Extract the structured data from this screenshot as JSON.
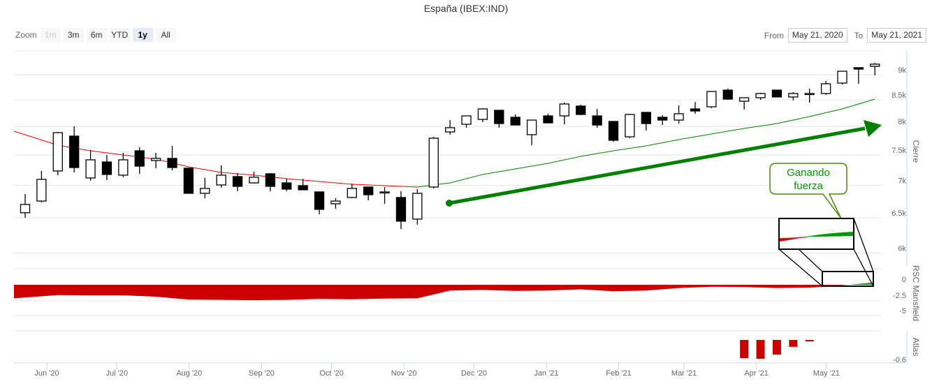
{
  "header": {
    "title": "España (IBEX:IND)",
    "zoom_label": "Zoom",
    "zoom_buttons": [
      {
        "label": "1m",
        "state": "disabled"
      },
      {
        "label": "3m",
        "state": "normal"
      },
      {
        "label": "6m",
        "state": "normal"
      },
      {
        "label": "YTD",
        "state": "normal"
      },
      {
        "label": "1y",
        "state": "selected"
      },
      {
        "label": "All",
        "state": "normal"
      }
    ],
    "from_label": "From",
    "from_value": "May 21, 2020",
    "to_label": "To",
    "to_value": "May 21, 2021"
  },
  "chart_data": [
    {
      "type": "candlestick",
      "name": "Cierre",
      "ylabel": "Cierre",
      "yscale": "log",
      "ylim": [
        6000,
        9300
      ],
      "yticks": [
        {
          "v": 9000,
          "label": "9k"
        },
        {
          "v": 8500,
          "label": "8.5k"
        },
        {
          "v": 8000,
          "label": "8k"
        },
        {
          "v": 7500,
          "label": "7.5k"
        },
        {
          "v": 7000,
          "label": "7k"
        },
        {
          "v": 6500,
          "label": "6.5k"
        },
        {
          "v": 6000,
          "label": "6k"
        }
      ],
      "frequency": "weekly",
      "ohlc": [
        [
          6575,
          6861,
          6501,
          6700
        ],
        [
          6752,
          7230,
          6731,
          7094
        ],
        [
          7230,
          7901,
          7161,
          7889
        ],
        [
          7827,
          8002,
          7207,
          7287
        ],
        [
          7116,
          7582,
          7071,
          7416
        ],
        [
          7380,
          7498,
          7082,
          7173
        ],
        [
          7162,
          7534,
          7128,
          7416
        ],
        [
          7570,
          7631,
          7184,
          7310
        ],
        [
          7404,
          7534,
          7276,
          7440
        ],
        [
          7440,
          7655,
          7241,
          7287
        ],
        [
          7276,
          7287,
          6872,
          6872
        ],
        [
          6872,
          7116,
          6796,
          6949
        ],
        [
          7004,
          7322,
          6960,
          7162
        ],
        [
          7139,
          7196,
          6905,
          6982
        ],
        [
          7037,
          7219,
          7026,
          7128
        ],
        [
          7184,
          7196,
          6905,
          6982
        ],
        [
          7037,
          7105,
          6905,
          6938
        ],
        [
          6993,
          7105,
          6927,
          6927
        ],
        [
          6894,
          6894,
          6552,
          6626
        ],
        [
          6710,
          6796,
          6636,
          6752
        ],
        [
          6807,
          7026,
          6796,
          6949
        ],
        [
          6971,
          6971,
          6763,
          6850
        ],
        [
          6894,
          6971,
          6710,
          6894
        ],
        [
          6807,
          6905,
          6338,
          6450
        ],
        [
          6481,
          6938,
          6399,
          6872
        ],
        [
          6971,
          7814,
          6949,
          7790
        ],
        [
          7902,
          8117,
          7852,
          7978
        ],
        [
          8040,
          8195,
          7978,
          8195
        ],
        [
          8130,
          8339,
          8079,
          8326
        ],
        [
          8300,
          8300,
          7978,
          8053
        ],
        [
          8169,
          8222,
          8027,
          8027
        ],
        [
          7852,
          8117,
          7667,
          8117
        ],
        [
          8195,
          8235,
          8066,
          8066
        ],
        [
          8195,
          8447,
          8040,
          8420
        ],
        [
          8380,
          8406,
          8208,
          8222
        ],
        [
          8195,
          8326,
          7978,
          8027
        ],
        [
          8092,
          8092,
          7728,
          7753
        ],
        [
          7814,
          8235,
          7790,
          8222
        ],
        [
          8261,
          8261,
          7927,
          8053
        ],
        [
          8169,
          8208,
          8027,
          8117
        ],
        [
          8117,
          8393,
          8053,
          8235
        ],
        [
          8326,
          8460,
          8235,
          8287
        ],
        [
          8366,
          8663,
          8339,
          8663
        ],
        [
          8690,
          8718,
          8501,
          8514
        ],
        [
          8473,
          8541,
          8313,
          8541
        ],
        [
          8541,
          8636,
          8501,
          8623
        ],
        [
          8690,
          8690,
          8555,
          8555
        ],
        [
          8555,
          8650,
          8487,
          8623
        ],
        [
          8623,
          8718,
          8447,
          8623
        ],
        [
          8623,
          8872,
          8596,
          8816
        ],
        [
          8830,
          9072,
          8802,
          9072
        ],
        [
          9145,
          9145,
          8816,
          9115
        ],
        [
          9173,
          9246,
          8986,
          9218
        ]
      ],
      "moving_average": {
        "step_weeks": 2,
        "values": [
          7852,
          7667,
          7570,
          7498,
          7428,
          7299,
          7207,
          7162,
          7105,
          7060,
          7015,
          6993,
          6971,
          7037,
          7173,
          7264,
          7357,
          7475,
          7570,
          7655,
          7765,
          7865,
          7965,
          8053,
          8182,
          8326,
          8514
        ],
        "color_below": "#ff0000",
        "color_above": "#008000"
      },
      "annotations": {
        "trend_arrow_color": "#008000",
        "callout_text_line1": "Ganando",
        "callout_text_line2": "fuerza",
        "callout_color": "#4f8a10"
      }
    },
    {
      "type": "area",
      "name": "RSC Mansfield",
      "ylabel": "RSC Mansfield",
      "ylim": [
        -6,
        2.5
      ],
      "yticks": [
        {
          "v": 0,
          "label": "0"
        },
        {
          "v": -2.5,
          "label": "-2.5"
        },
        {
          "v": -5,
          "label": "-5"
        }
      ],
      "step_weeks": 2,
      "values": [
        -2.1,
        -1.6,
        -1.65,
        -1.65,
        -1.85,
        -2.3,
        -2.35,
        -2.4,
        -2.35,
        -2.2,
        -2.25,
        -2.15,
        -2.1,
        -0.9,
        -0.8,
        -0.95,
        -0.9,
        -0.7,
        -1.0,
        -0.9,
        -0.5,
        -0.3,
        -0.35,
        -0.5,
        -0.45,
        -0.1,
        0.35
      ],
      "negative_color": "#cc0000",
      "positive_color": "#009900"
    },
    {
      "type": "bar",
      "name": "Atlas",
      "ylabel": "Atlas",
      "yticks": [
        {
          "v": -0.6,
          "label": "-0.6"
        }
      ],
      "week_indices": [
        44,
        45,
        46,
        47,
        48
      ],
      "values": [
        -0.56,
        -0.58,
        -0.45,
        -0.21,
        -0.03
      ],
      "color": "#cc0000"
    }
  ],
  "xaxis": {
    "ticks": [
      "Jun '20",
      "Jul '20",
      "Aug '20",
      "Sep '20",
      "Oct '20",
      "Nov '20",
      "Dec '20",
      "Jan '21",
      "Feb '21",
      "Mar '21",
      "Apr '21",
      "May '21"
    ],
    "tick_days_from_jun1": [
      0,
      30,
      61,
      92,
      122,
      153,
      183,
      214,
      245,
      273,
      304,
      334
    ]
  }
}
